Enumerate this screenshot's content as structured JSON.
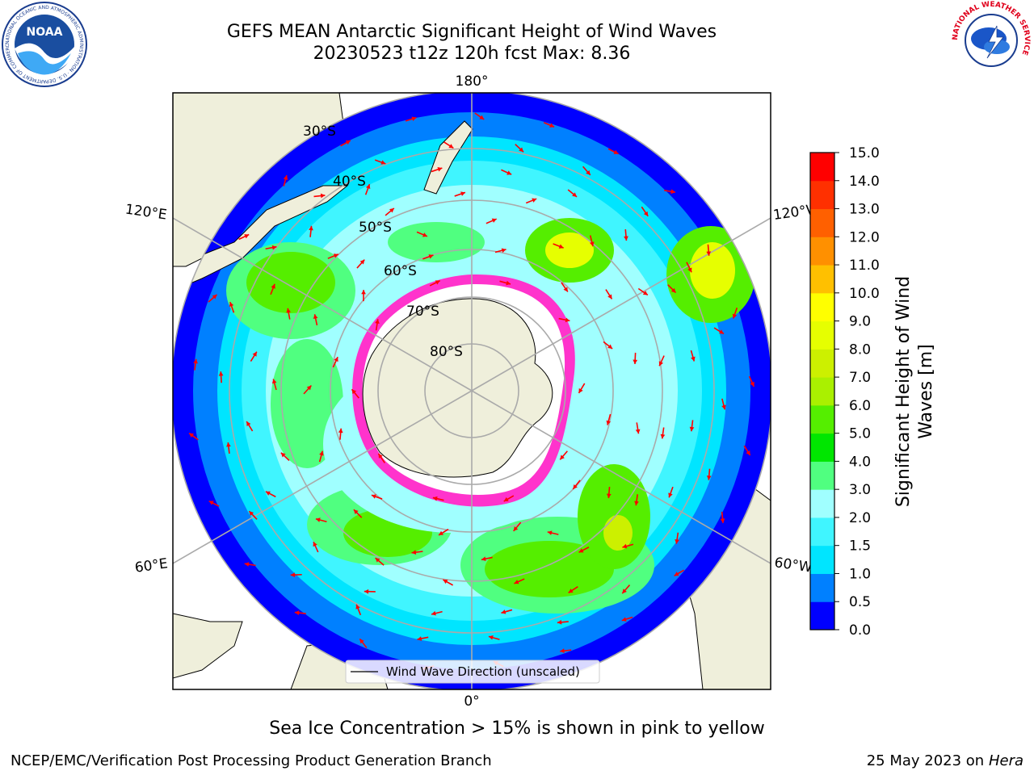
{
  "header": {
    "title_line1": "GEFS MEAN Antarctic Significant Height of Wind Waves",
    "title_line2": "20230523 t12z 120h fcst   Max: 8.36"
  },
  "logos": {
    "noara_label": "NOAA",
    "noaa_ring_text": "NATIONAL OCEANIC AND ATMOSPHERIC ADMINISTRATION · U.S. DEPARTMENT OF COMMERCE",
    "nws_ring_text": "NATIONAL WEATHER SERVICE"
  },
  "map": {
    "projection": "south-polar-stereographic",
    "longitude_labels": {
      "top": "180°",
      "bottom": "0°",
      "upper_left": "120°E",
      "upper_right": "120°W",
      "lower_left": "60°E",
      "lower_right": "60°W"
    },
    "latitude_labels": [
      "30°S",
      "40°S",
      "50°S",
      "60°S",
      "70°S",
      "80°S"
    ],
    "legend_label": "Wind Wave Direction (unscaled)",
    "arrow_color": "#ff0000",
    "land_color": "#efefdb",
    "sea_ice_color": "#ff33cc"
  },
  "colorbar": {
    "label_line1": "Significant Height of Wind",
    "label_line2": "Waves [m]",
    "ticks": [
      "0.0",
      "0.5",
      "1.0",
      "1.5",
      "2.0",
      "3.0",
      "4.0",
      "5.0",
      "6.0",
      "7.0",
      "8.0",
      "9.0",
      "10.0",
      "11.0",
      "12.0",
      "13.0",
      "14.0",
      "15.0"
    ],
    "colors": [
      "#0000ff",
      "#0080ff",
      "#00e5ff",
      "#40f5ff",
      "#a0ffff",
      "#50ff80",
      "#00e600",
      "#55ee00",
      "#aaf000",
      "#ccf000",
      "#e6ff00",
      "#ffff00",
      "#ffc000",
      "#ff9000",
      "#ff6000",
      "#ff3000",
      "#ff0000"
    ]
  },
  "footer": {
    "sea_ice_note": "Sea Ice Concentration > 15% is shown in pink to yellow",
    "credit": "NCEP/EMC/Verification Post Processing Product Generation Branch",
    "date": "25 May 2023 on",
    "machine": "Hera"
  }
}
